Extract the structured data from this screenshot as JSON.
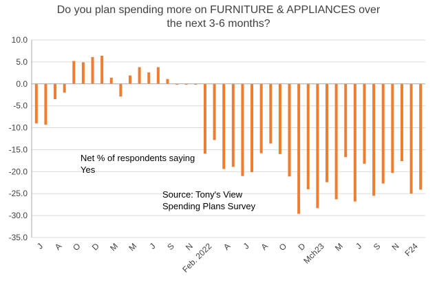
{
  "title_lines": [
    "Do you plan spending more on FURNITURE & APPLIANCES over",
    "the next 3-6 months?"
  ],
  "annotations": {
    "respondents_line1": "Net % of respondents saying",
    "respondents_line2": "Yes",
    "source_line1": "Source: Tony's View",
    "source_line2": "Spending Plans Survey"
  },
  "colors": {
    "bar": "#ED7D31",
    "grid": "#D9D9D9",
    "axis": "#A6A6A6",
    "text": "#404040"
  },
  "chart_data": {
    "type": "bar",
    "title": "Do you plan spending more on FURNITURE & APPLIANCES over the next 3-6 months?",
    "ylim": [
      -35,
      10
    ],
    "yticks": [
      10.0,
      5.0,
      0.0,
      -5.0,
      -10.0,
      -15.0,
      -20.0,
      -25.0,
      -30.0,
      -35.0
    ],
    "ytick_labels": [
      "10.0",
      "5.0",
      "0.0",
      "-5.0",
      "-10.0",
      "-15.0",
      "-20.0",
      "-25.0",
      "-30.0",
      "-35.0"
    ],
    "grid": "horizontal",
    "categories": [
      "J",
      "",
      "A",
      "",
      "O",
      "",
      "D",
      "",
      "M",
      "",
      "M",
      "",
      "J",
      "",
      "S",
      "",
      "N",
      "",
      "Feb. 2022",
      "",
      "A",
      "",
      "J",
      "",
      "A",
      "",
      "O",
      "",
      "D",
      "",
      "Mch23",
      "",
      "M",
      "",
      "J",
      "",
      "S",
      "",
      "N",
      "",
      "F24",
      ""
    ],
    "values": [
      -9.0,
      -9.3,
      -3.5,
      -2.0,
      5.2,
      4.9,
      6.1,
      6.4,
      1.4,
      -2.9,
      1.9,
      3.8,
      2.6,
      3.8,
      1.1,
      -0.2,
      -0.2,
      -0.2,
      -15.9,
      -12.8,
      -19.4,
      -18.9,
      -21.0,
      -20.1,
      -15.8,
      -13.6,
      -16.0,
      -21.1,
      -29.6,
      -24.0,
      -28.3,
      -22.4,
      -26.3,
      -16.7,
      -26.8,
      -18.2,
      -25.5,
      -22.7,
      -20.3,
      -17.6,
      -25.0,
      -24.1
    ]
  }
}
